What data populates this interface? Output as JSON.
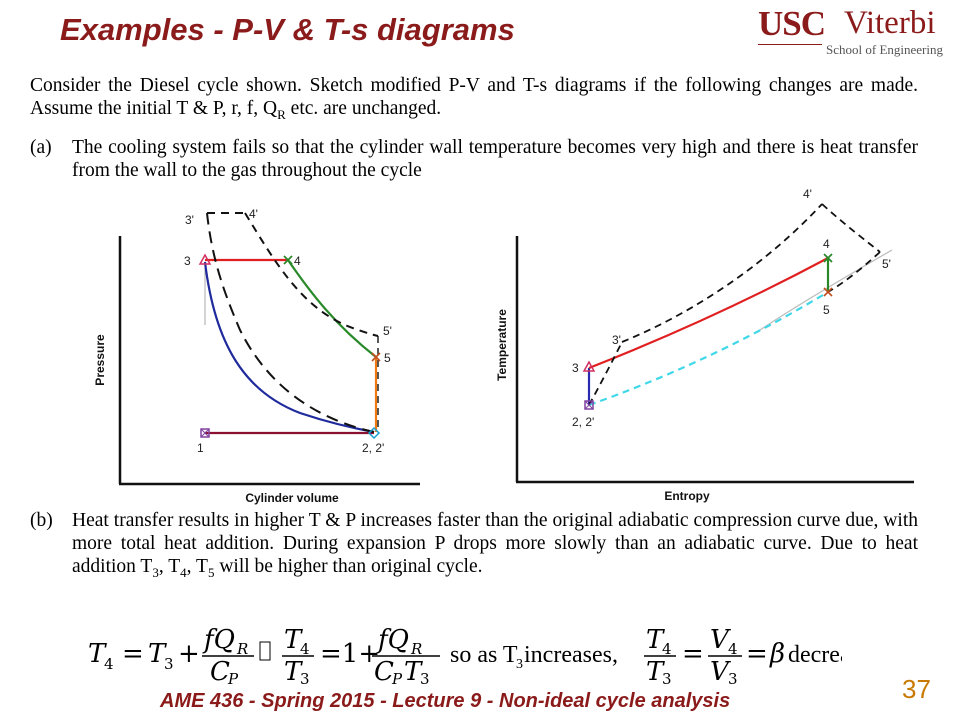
{
  "header": {
    "title": "Examples - P-V & T-s diagrams",
    "logo": {
      "usc": "USC",
      "viterbi": "Viterbi",
      "school": "School of Engineering",
      "color": "#8b1a1a"
    }
  },
  "intro": {
    "text1": "Consider the Diesel cycle shown.  Sketch modified P-V and T-s diagrams if the following changes are made. Assume the initial T & P, r, f, Q",
    "sub": "R",
    "text2": " etc. are unchanged."
  },
  "items": [
    {
      "label": "(a)",
      "text": "The cooling system fails so that the cylinder wall temperature becomes very high and there is heat transfer from the wall to the gas throughout the cycle"
    },
    {
      "label": "(b)",
      "text1": "Heat transfer results in higher T & P increases faster than the original adiabatic compression curve due, with more total heat addition.  During expansion P drops more slowly than an adiabatic curve.  Due to heat addition T",
      "s3": "3",
      "c1": ", T",
      "s4": "4",
      "c2": ", T",
      "s5": "5",
      "text2": " will be higher than original cycle."
    }
  ],
  "pv_diagram": {
    "x_axis_label": "Cylinder volume",
    "y_axis_label": "Pressure",
    "points": {
      "p3p": "3'",
      "p4p": "4'",
      "p3": "3",
      "p4": "4",
      "p5p": "5'",
      "p5": "5",
      "p1": "1",
      "p2": "2, 2'"
    }
  },
  "ts_diagram": {
    "x_axis_label": "Entropy",
    "y_axis_label": "Temperature",
    "points": {
      "p4p": "4'",
      "p4": "4",
      "p5p": "5'",
      "p5": "5",
      "p3p": "3'",
      "p3": "3",
      "p2": "2, 2'"
    }
  },
  "equation": {
    "T4": "T",
    "s4": "4",
    "eq1": "=",
    "T3": "T",
    "s3": "3",
    "plus1": "+",
    "fQR_num": "fQ",
    "fQR_sub": "R",
    "Cp": "C",
    "Cp_sub": "P",
    "T4b": "T",
    "s4b": "4",
    "T3b": "T",
    "s3b": "3",
    "eq2": "=1+",
    "fQR2": "fQ",
    "fQR2_sub": "R",
    "CpT3": "C",
    "CpT3_sub": "P",
    "CpT3_T": "T",
    "CpT3_sub2": "3",
    "so_as": "so as T",
    "so_as_sub": "3",
    "increases": " increases,",
    "T4c": "T",
    "s4c": "4",
    "T3c": "T",
    "s3c": "3",
    "eq3": "=",
    "V4": "V",
    "sv4": "4",
    "V3": "V",
    "sv3": "3",
    "eq4": "=",
    "beta": "β",
    "decreases": "decreases"
  },
  "footer": {
    "text": "AME 436 - Spring 2015 - Lecture 9 - Non-ideal cycle analysis",
    "page": "37"
  }
}
